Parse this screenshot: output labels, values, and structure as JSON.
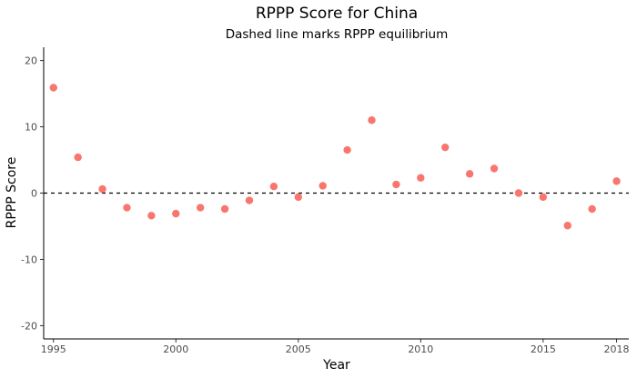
{
  "chart_data": {
    "type": "scatter",
    "title": "RPPP Score for China",
    "subtitle": "Dashed line marks RPPP equilibrium",
    "xlabel": "Year",
    "ylabel": "RPPP Score",
    "xlim": [
      1994.6,
      2018.5
    ],
    "ylim": [
      -22,
      22
    ],
    "x_ticks": [
      "1995",
      "2000",
      "2005",
      "2010",
      "2015",
      "2018"
    ],
    "y_ticks": [
      "20",
      "10",
      "0",
      "-10",
      "-20"
    ],
    "grid": false,
    "reference_line": {
      "y": 0,
      "style": "dashed"
    },
    "point_color": "#F8766D",
    "points": [
      {
        "x": 1995,
        "y": 15.9
      },
      {
        "x": 1996,
        "y": 5.4
      },
      {
        "x": 1997,
        "y": 0.6
      },
      {
        "x": 1998,
        "y": -2.2
      },
      {
        "x": 1999,
        "y": -3.4
      },
      {
        "x": 2000,
        "y": -3.1
      },
      {
        "x": 2001,
        "y": -2.2
      },
      {
        "x": 2002,
        "y": -2.4
      },
      {
        "x": 2003,
        "y": -1.1
      },
      {
        "x": 2004,
        "y": 1.0
      },
      {
        "x": 2005,
        "y": -0.6
      },
      {
        "x": 2006,
        "y": 1.1
      },
      {
        "x": 2007,
        "y": 6.5
      },
      {
        "x": 2008,
        "y": 11.0
      },
      {
        "x": 2009,
        "y": 1.3
      },
      {
        "x": 2010,
        "y": 2.3
      },
      {
        "x": 2011,
        "y": 6.9
      },
      {
        "x": 2012,
        "y": 2.9
      },
      {
        "x": 2013,
        "y": 3.7
      },
      {
        "x": 2014,
        "y": 0.0
      },
      {
        "x": 2015,
        "y": -0.6
      },
      {
        "x": 2016,
        "y": -4.9
      },
      {
        "x": 2017,
        "y": -2.4
      },
      {
        "x": 2018,
        "y": 1.8
      }
    ]
  }
}
